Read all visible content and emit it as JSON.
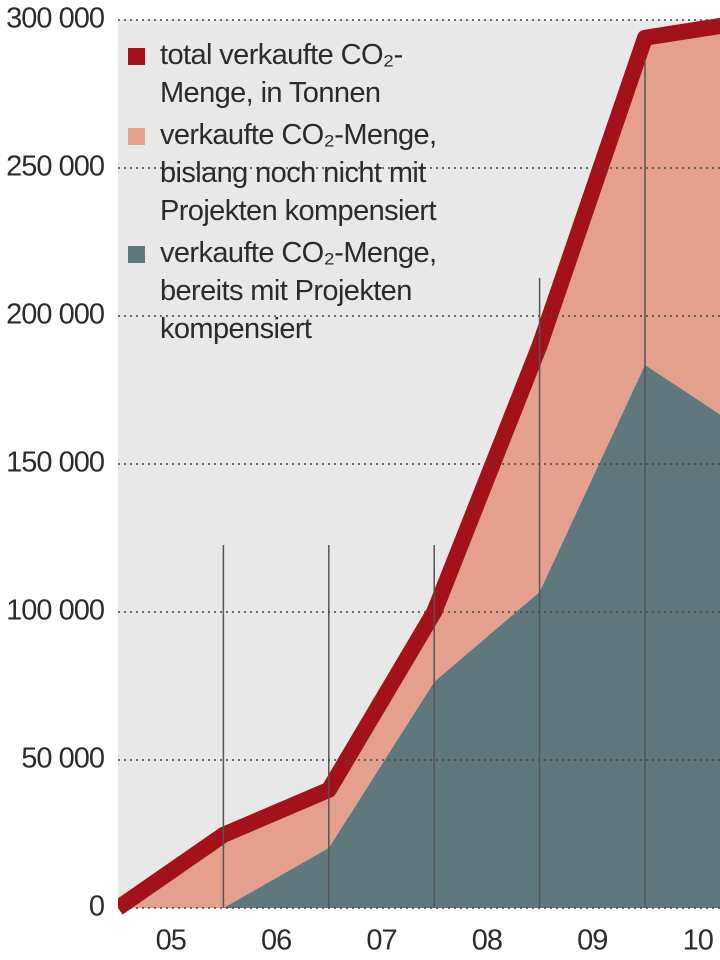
{
  "chart_data": {
    "type": "stacked-area",
    "categories": [
      "05",
      "06",
      "07",
      "08",
      "09",
      "10"
    ],
    "series": [
      {
        "name": "total verkaufte CO₂-Menge, in Tonnen",
        "color": "#a3121a",
        "type": "line",
        "values": [
          24700,
          39900,
          100000,
          190000,
          294000,
          299600
        ]
      },
      {
        "name": "verkaufte CO₂-Menge, bislang noch nicht mit Projekten kompensiert",
        "color": "#e4a08c",
        "type": "area",
        "values": [
          24700,
          19600,
          23600,
          83200,
          110500,
          139600
        ]
      },
      {
        "name": "verkaufte CO₂-Menge, bereits mit Projekten kompensiert",
        "color": "#5e787d",
        "type": "area",
        "values": [
          0,
          20300,
          76400,
          106800,
          183500,
          160000
        ]
      }
    ],
    "ylim": [
      0,
      300000
    ],
    "yticks": [
      0,
      {
        "value": 50000,
        "label": "50 000"
      },
      {
        "value": 100000,
        "label": "100 000"
      },
      {
        "value": 150000,
        "label": "150 000"
      },
      {
        "value": 200000,
        "label": "200 000"
      },
      {
        "value": 250000,
        "label": "250 000"
      },
      {
        "value": 300000,
        "label": "300 000"
      }
    ],
    "grid": true
  }
}
